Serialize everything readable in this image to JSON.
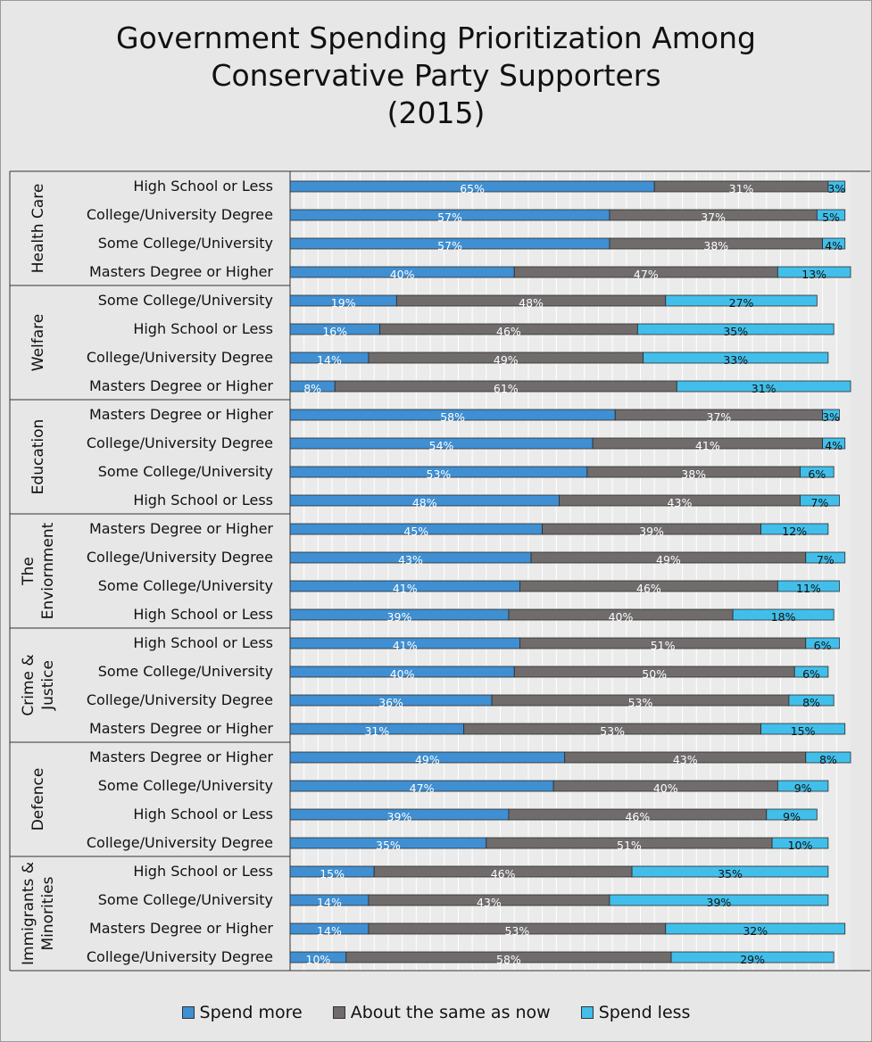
{
  "chart_data": {
    "type": "bar",
    "orientation": "horizontal",
    "stacked": "100%",
    "title_lines": [
      "Government Spending Prioritization Among",
      "Conservative Party Supporters",
      "(2015)"
    ],
    "series_names": [
      "Spend more",
      "About the same as now",
      "Spend less"
    ],
    "colors": [
      "#3f8fd2",
      "#706c6c",
      "#41bfea"
    ],
    "legend_position": "bottom",
    "grid": true,
    "xlim": [
      0,
      100
    ],
    "groups": [
      {
        "name": "Health Care",
        "label_lines": [
          "Health Care"
        ],
        "rows": [
          {
            "category": "High School or Less",
            "values": [
              65,
              31,
              3
            ],
            "labels": [
              "65%",
              "31%",
              "3%"
            ]
          },
          {
            "category": "College/University Degree",
            "values": [
              57,
              37,
              5
            ],
            "labels": [
              "57%",
              "37%",
              "5%"
            ]
          },
          {
            "category": "Some College/University",
            "values": [
              57,
              38,
              4
            ],
            "labels": [
              "57%",
              "38%",
              "4%"
            ]
          },
          {
            "category": "Masters Degree or Higher",
            "values": [
              40,
              47,
              13
            ],
            "labels": [
              "40%",
              "47%",
              "13%"
            ]
          }
        ]
      },
      {
        "name": "Welfare",
        "label_lines": [
          "Welfare"
        ],
        "rows": [
          {
            "category": "Some College/University",
            "values": [
              19,
              48,
              27
            ],
            "labels": [
              "19%",
              "48%",
              "27%"
            ]
          },
          {
            "category": "High School or Less",
            "values": [
              16,
              46,
              35
            ],
            "labels": [
              "16%",
              "46%",
              "35%"
            ]
          },
          {
            "category": "College/University Degree",
            "values": [
              14,
              49,
              33
            ],
            "labels": [
              "14%",
              "49%",
              "33%"
            ]
          },
          {
            "category": "Masters Degree or Higher",
            "values": [
              8,
              61,
              31
            ],
            "labels": [
              "8%",
              "61%",
              "31%"
            ]
          }
        ]
      },
      {
        "name": "Education",
        "label_lines": [
          "Education"
        ],
        "rows": [
          {
            "category": "Masters Degree or Higher",
            "values": [
              58,
              37,
              3
            ],
            "labels": [
              "58%",
              "37%",
              "3%"
            ]
          },
          {
            "category": "College/University Degree",
            "values": [
              54,
              41,
              4
            ],
            "labels": [
              "54%",
              "41%",
              "4%"
            ]
          },
          {
            "category": "Some College/University",
            "values": [
              53,
              38,
              6
            ],
            "labels": [
              "53%",
              "38%",
              "6%"
            ]
          },
          {
            "category": "High School or Less",
            "values": [
              48,
              43,
              7
            ],
            "labels": [
              "48%",
              "43%",
              "7%"
            ]
          }
        ]
      },
      {
        "name": "The Enviornment",
        "label_lines": [
          "The",
          "Enviornment"
        ],
        "rows": [
          {
            "category": "Masters Degree or Higher",
            "values": [
              45,
              39,
              12
            ],
            "labels": [
              "45%",
              "39%",
              "12%"
            ]
          },
          {
            "category": "College/University Degree",
            "values": [
              43,
              49,
              7
            ],
            "labels": [
              "43%",
              "49%",
              "7%"
            ]
          },
          {
            "category": "Some College/University",
            "values": [
              41,
              46,
              11
            ],
            "labels": [
              "41%",
              "46%",
              "11%"
            ]
          },
          {
            "category": "High School or Less",
            "values": [
              39,
              40,
              18
            ],
            "labels": [
              "39%",
              "40%",
              "18%"
            ]
          }
        ]
      },
      {
        "name": "Crime & Justice",
        "label_lines": [
          "Crime &",
          "Justice"
        ],
        "rows": [
          {
            "category": "High School or Less",
            "values": [
              41,
              51,
              6
            ],
            "labels": [
              "41%",
              "51%",
              "6%"
            ]
          },
          {
            "category": "Some College/University",
            "values": [
              40,
              50,
              6
            ],
            "labels": [
              "40%",
              "50%",
              "6%"
            ]
          },
          {
            "category": "College/University Degree",
            "values": [
              36,
              53,
              8
            ],
            "labels": [
              "36%",
              "53%",
              "8%"
            ]
          },
          {
            "category": "Masters Degree or Higher",
            "values": [
              31,
              53,
              15
            ],
            "labels": [
              "31%",
              "53%",
              "15%"
            ]
          }
        ]
      },
      {
        "name": "Defence",
        "label_lines": [
          "Defence"
        ],
        "rows": [
          {
            "category": "Masters Degree or Higher",
            "values": [
              49,
              43,
              8
            ],
            "labels": [
              "49%",
              "43%",
              "8%"
            ]
          },
          {
            "category": "Some College/University",
            "values": [
              47,
              40,
              9
            ],
            "labels": [
              "47%",
              "40%",
              "9%"
            ]
          },
          {
            "category": "High School or Less",
            "values": [
              39,
              46,
              9
            ],
            "labels": [
              "39%",
              "46%",
              "9%"
            ]
          },
          {
            "category": "College/University Degree",
            "values": [
              35,
              51,
              10
            ],
            "labels": [
              "35%",
              "51%",
              "10%"
            ]
          }
        ]
      },
      {
        "name": "Immigrants & Minorities",
        "label_lines": [
          "Immigrants &",
          "Minorities"
        ],
        "rows": [
          {
            "category": "High School or Less",
            "values": [
              15,
              46,
              35
            ],
            "labels": [
              "15%",
              "46%",
              "35%"
            ]
          },
          {
            "category": "Some College/University",
            "values": [
              14,
              43,
              39
            ],
            "labels": [
              "14%",
              "43%",
              "39%"
            ]
          },
          {
            "category": "Masters Degree or Higher",
            "values": [
              14,
              53,
              32
            ],
            "labels": [
              "14%",
              "53%",
              "32%"
            ]
          },
          {
            "category": "College/University Degree",
            "values": [
              10,
              58,
              29
            ],
            "labels": [
              "10%",
              "58%",
              "29%"
            ]
          }
        ]
      }
    ]
  }
}
